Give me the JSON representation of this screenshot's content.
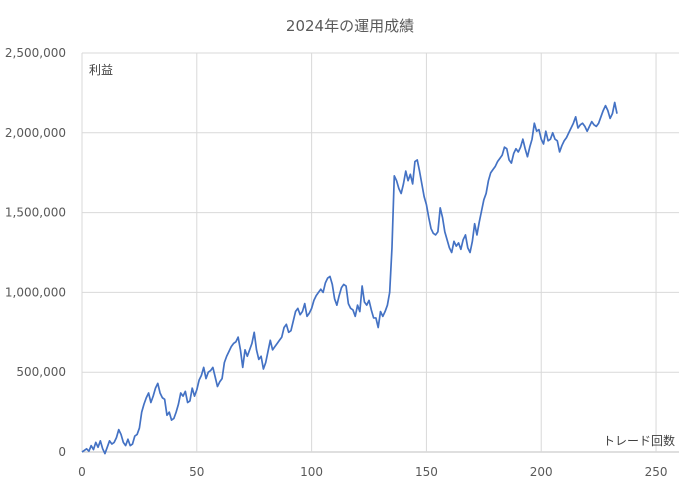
{
  "chart_data": {
    "type": "line",
    "title": "2024年の運用成績",
    "xlabel": "トレード回数",
    "ylabel": "利益",
    "xlim": [
      0,
      260
    ],
    "ylim": [
      0,
      2500000
    ],
    "x_ticks": [
      0,
      50,
      100,
      150,
      200,
      250
    ],
    "x_tick_labels": [
      "0",
      "50",
      "100",
      "150",
      "200",
      "250"
    ],
    "y_ticks": [
      0,
      500000,
      1000000,
      1500000,
      2000000,
      2500000
    ],
    "y_tick_labels": [
      "0",
      "500,000",
      "1,000,000",
      "1,500,000",
      "2,000,000",
      "2,500,000"
    ],
    "grid": true,
    "line_color": "#4472c4",
    "series": [
      {
        "values": [
          [
            0,
            0
          ],
          [
            1,
            10000
          ],
          [
            2,
            20000
          ],
          [
            3,
            5000
          ],
          [
            4,
            40000
          ],
          [
            5,
            15000
          ],
          [
            6,
            60000
          ],
          [
            7,
            30000
          ],
          [
            8,
            70000
          ],
          [
            9,
            20000
          ],
          [
            10,
            -10000
          ],
          [
            11,
            30000
          ],
          [
            12,
            70000
          ],
          [
            13,
            50000
          ],
          [
            14,
            60000
          ],
          [
            15,
            90000
          ],
          [
            16,
            140000
          ],
          [
            17,
            110000
          ],
          [
            18,
            60000
          ],
          [
            19,
            40000
          ],
          [
            20,
            80000
          ],
          [
            21,
            40000
          ],
          [
            22,
            50000
          ],
          [
            23,
            100000
          ],
          [
            24,
            110000
          ],
          [
            25,
            150000
          ],
          [
            26,
            250000
          ],
          [
            27,
            300000
          ],
          [
            28,
            340000
          ],
          [
            29,
            370000
          ],
          [
            30,
            310000
          ],
          [
            31,
            350000
          ],
          [
            32,
            400000
          ],
          [
            33,
            430000
          ],
          [
            34,
            370000
          ],
          [
            35,
            340000
          ],
          [
            36,
            330000
          ],
          [
            37,
            230000
          ],
          [
            38,
            250000
          ],
          [
            39,
            200000
          ],
          [
            40,
            210000
          ],
          [
            41,
            250000
          ],
          [
            42,
            300000
          ],
          [
            43,
            370000
          ],
          [
            44,
            350000
          ],
          [
            45,
            380000
          ],
          [
            46,
            310000
          ],
          [
            47,
            320000
          ],
          [
            48,
            400000
          ],
          [
            49,
            350000
          ],
          [
            50,
            390000
          ],
          [
            51,
            450000
          ],
          [
            52,
            480000
          ],
          [
            53,
            530000
          ],
          [
            54,
            460000
          ],
          [
            55,
            500000
          ],
          [
            56,
            510000
          ],
          [
            57,
            530000
          ],
          [
            58,
            470000
          ],
          [
            59,
            410000
          ],
          [
            60,
            440000
          ],
          [
            61,
            460000
          ],
          [
            62,
            560000
          ],
          [
            63,
            600000
          ],
          [
            64,
            630000
          ],
          [
            65,
            660000
          ],
          [
            66,
            680000
          ],
          [
            67,
            690000
          ],
          [
            68,
            720000
          ],
          [
            69,
            640000
          ],
          [
            70,
            530000
          ],
          [
            71,
            640000
          ],
          [
            72,
            600000
          ],
          [
            73,
            640000
          ],
          [
            74,
            680000
          ],
          [
            75,
            750000
          ],
          [
            76,
            640000
          ],
          [
            77,
            580000
          ],
          [
            78,
            600000
          ],
          [
            79,
            520000
          ],
          [
            80,
            560000
          ],
          [
            81,
            630000
          ],
          [
            82,
            700000
          ],
          [
            83,
            640000
          ],
          [
            84,
            660000
          ],
          [
            85,
            680000
          ],
          [
            86,
            700000
          ],
          [
            87,
            720000
          ],
          [
            88,
            780000
          ],
          [
            89,
            800000
          ],
          [
            90,
            750000
          ],
          [
            91,
            760000
          ],
          [
            92,
            820000
          ],
          [
            93,
            880000
          ],
          [
            94,
            900000
          ],
          [
            95,
            860000
          ],
          [
            96,
            880000
          ],
          [
            97,
            930000
          ],
          [
            98,
            850000
          ],
          [
            99,
            870000
          ],
          [
            100,
            900000
          ],
          [
            101,
            950000
          ],
          [
            102,
            980000
          ],
          [
            103,
            1000000
          ],
          [
            104,
            1020000
          ],
          [
            105,
            1000000
          ],
          [
            106,
            1060000
          ],
          [
            107,
            1090000
          ],
          [
            108,
            1100000
          ],
          [
            109,
            1050000
          ],
          [
            110,
            960000
          ],
          [
            111,
            920000
          ],
          [
            112,
            980000
          ],
          [
            113,
            1030000
          ],
          [
            114,
            1050000
          ],
          [
            115,
            1040000
          ],
          [
            116,
            930000
          ],
          [
            117,
            900000
          ],
          [
            118,
            890000
          ],
          [
            119,
            850000
          ],
          [
            120,
            920000
          ],
          [
            121,
            880000
          ],
          [
            122,
            1040000
          ],
          [
            123,
            940000
          ],
          [
            124,
            920000
          ],
          [
            125,
            950000
          ],
          [
            126,
            890000
          ],
          [
            127,
            840000
          ],
          [
            128,
            840000
          ],
          [
            129,
            780000
          ],
          [
            130,
            880000
          ],
          [
            131,
            850000
          ],
          [
            132,
            880000
          ],
          [
            133,
            920000
          ],
          [
            134,
            1000000
          ],
          [
            135,
            1280000
          ],
          [
            136,
            1730000
          ],
          [
            137,
            1700000
          ],
          [
            138,
            1650000
          ],
          [
            139,
            1620000
          ],
          [
            140,
            1680000
          ],
          [
            141,
            1760000
          ],
          [
            142,
            1700000
          ],
          [
            143,
            1740000
          ],
          [
            144,
            1680000
          ],
          [
            145,
            1820000
          ],
          [
            146,
            1830000
          ],
          [
            147,
            1760000
          ],
          [
            148,
            1680000
          ],
          [
            149,
            1600000
          ],
          [
            150,
            1550000
          ],
          [
            151,
            1470000
          ],
          [
            152,
            1400000
          ],
          [
            153,
            1370000
          ],
          [
            154,
            1360000
          ],
          [
            155,
            1380000
          ],
          [
            156,
            1530000
          ],
          [
            157,
            1470000
          ],
          [
            158,
            1380000
          ],
          [
            159,
            1330000
          ],
          [
            160,
            1280000
          ],
          [
            161,
            1250000
          ],
          [
            162,
            1320000
          ],
          [
            163,
            1290000
          ],
          [
            164,
            1310000
          ],
          [
            165,
            1270000
          ],
          [
            166,
            1330000
          ],
          [
            167,
            1360000
          ],
          [
            168,
            1280000
          ],
          [
            169,
            1250000
          ],
          [
            170,
            1320000
          ],
          [
            171,
            1430000
          ],
          [
            172,
            1360000
          ],
          [
            173,
            1440000
          ],
          [
            174,
            1510000
          ],
          [
            175,
            1580000
          ],
          [
            176,
            1620000
          ],
          [
            177,
            1700000
          ],
          [
            178,
            1750000
          ],
          [
            179,
            1770000
          ],
          [
            180,
            1790000
          ],
          [
            181,
            1820000
          ],
          [
            182,
            1840000
          ],
          [
            183,
            1860000
          ],
          [
            184,
            1910000
          ],
          [
            185,
            1900000
          ],
          [
            186,
            1830000
          ],
          [
            187,
            1810000
          ],
          [
            188,
            1870000
          ],
          [
            189,
            1900000
          ],
          [
            190,
            1880000
          ],
          [
            191,
            1910000
          ],
          [
            192,
            1960000
          ],
          [
            193,
            1900000
          ],
          [
            194,
            1850000
          ],
          [
            195,
            1910000
          ],
          [
            196,
            1960000
          ],
          [
            197,
            2060000
          ],
          [
            198,
            2010000
          ],
          [
            199,
            2020000
          ],
          [
            200,
            1960000
          ],
          [
            201,
            1930000
          ],
          [
            202,
            2010000
          ],
          [
            203,
            1950000
          ],
          [
            204,
            1960000
          ],
          [
            205,
            2000000
          ],
          [
            206,
            1960000
          ],
          [
            207,
            1950000
          ],
          [
            208,
            1880000
          ],
          [
            209,
            1920000
          ],
          [
            210,
            1950000
          ],
          [
            211,
            1970000
          ],
          [
            212,
            2000000
          ],
          [
            213,
            2030000
          ],
          [
            214,
            2060000
          ],
          [
            215,
            2100000
          ],
          [
            216,
            2030000
          ],
          [
            217,
            2050000
          ],
          [
            218,
            2060000
          ],
          [
            219,
            2040000
          ],
          [
            220,
            2010000
          ],
          [
            221,
            2040000
          ],
          [
            222,
            2070000
          ],
          [
            223,
            2050000
          ],
          [
            224,
            2040000
          ],
          [
            225,
            2060000
          ],
          [
            226,
            2100000
          ],
          [
            227,
            2140000
          ],
          [
            228,
            2170000
          ],
          [
            229,
            2140000
          ],
          [
            230,
            2090000
          ],
          [
            231,
            2120000
          ],
          [
            232,
            2190000
          ],
          [
            233,
            2120000
          ]
        ]
      }
    ]
  }
}
